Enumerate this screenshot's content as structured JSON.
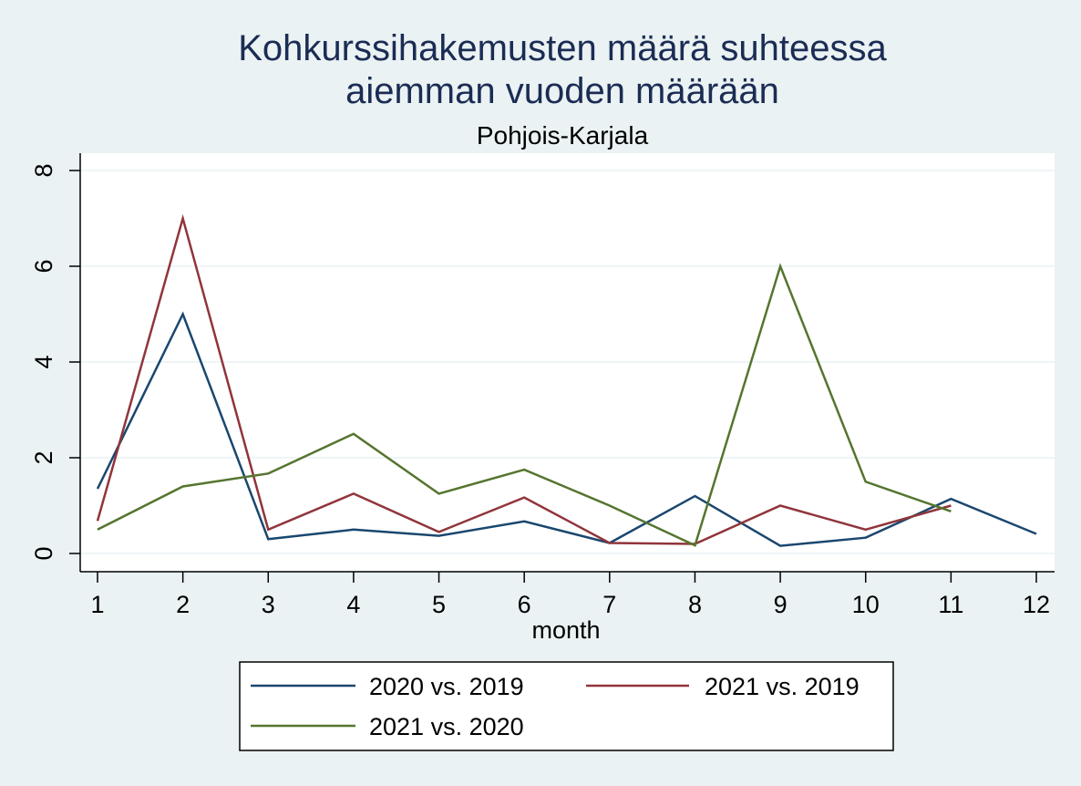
{
  "chart_data": {
    "type": "line",
    "title": [
      "Kohkurssihakemusten määrä suhteessa",
      "aiemman vuoden määrään"
    ],
    "subtitle": "Pohjois-Karjala",
    "xlabel": "month",
    "ylabel": "",
    "x": [
      1,
      2,
      3,
      4,
      5,
      6,
      7,
      8,
      9,
      10,
      11,
      12
    ],
    "xlim": [
      1,
      12
    ],
    "ylim": [
      0,
      8
    ],
    "xticks": [
      1,
      2,
      3,
      4,
      5,
      6,
      7,
      8,
      9,
      10,
      11,
      12
    ],
    "yticks": [
      0,
      2,
      4,
      6,
      8
    ],
    "grid": true,
    "legend_position": "bottom",
    "series": [
      {
        "name": "2020 vs. 2019",
        "color": "#1a476f",
        "values": [
          1.35,
          5.0,
          0.3,
          0.5,
          0.37,
          0.67,
          0.22,
          1.2,
          0.16,
          0.33,
          1.14,
          0.41
        ]
      },
      {
        "name": "2021 vs. 2019",
        "color": "#90353b",
        "values": [
          0.68,
          7.0,
          0.5,
          1.25,
          0.45,
          1.17,
          0.22,
          0.2,
          1.0,
          0.5,
          1.0,
          null
        ]
      },
      {
        "name": "2021 vs. 2020",
        "color": "#55752f",
        "values": [
          0.5,
          1.4,
          1.67,
          2.5,
          1.25,
          1.75,
          1.0,
          0.17,
          6.0,
          1.5,
          0.88,
          null
        ]
      }
    ]
  }
}
